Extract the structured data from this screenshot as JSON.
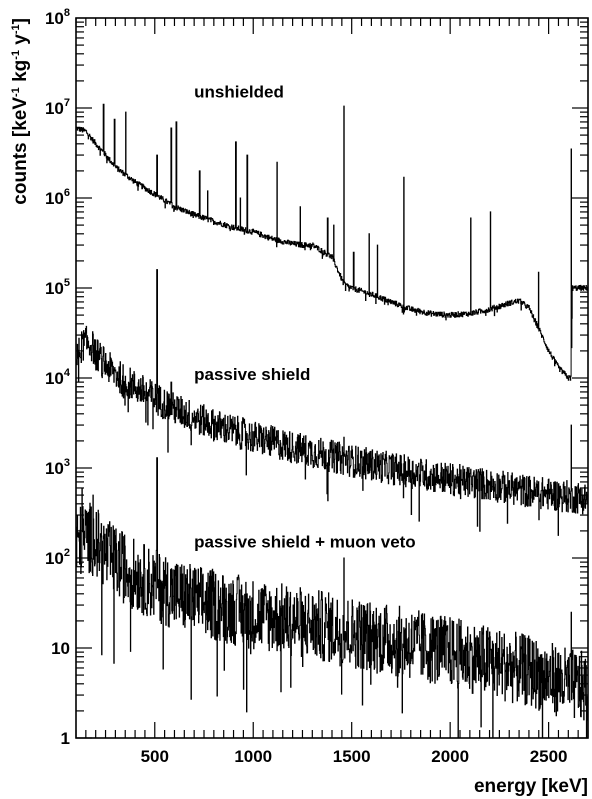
{
  "chart_data": {
    "type": "line",
    "xlabel": "energy [keV]",
    "ylabel": {
      "text": "counts [keV",
      "sup1": "-1",
      "mid": " kg",
      "sup2": "-1",
      "mid2": " y",
      "sup3": "-1",
      "end": "]"
    },
    "xlim": [
      100,
      2700
    ],
    "ylim": [
      1,
      100000000
    ],
    "yscale": "log",
    "x_ticks": [
      {
        "value": 500,
        "label": "500"
      },
      {
        "value": 1000,
        "label": "1000"
      },
      {
        "value": 1500,
        "label": "1500"
      },
      {
        "value": 2000,
        "label": "2000"
      },
      {
        "value": 2500,
        "label": "2500"
      }
    ],
    "y_ticks": [
      {
        "value": 1,
        "label": "1",
        "exp": ""
      },
      {
        "value": 10,
        "label": "10",
        "exp": ""
      },
      {
        "value": 100,
        "label": "10",
        "exp": "2"
      },
      {
        "value": 1000,
        "label": "10",
        "exp": "3"
      },
      {
        "value": 10000,
        "label": "10",
        "exp": "4"
      },
      {
        "value": 100000,
        "label": "10",
        "exp": "5"
      },
      {
        "value": 1000000,
        "label": "10",
        "exp": "6"
      },
      {
        "value": 10000000,
        "label": "10",
        "exp": "7"
      },
      {
        "value": 100000000,
        "label": "10",
        "exp": "8"
      }
    ],
    "annotations": [
      {
        "text": "unshielded",
        "x": 700,
        "y": 13000000
      },
      {
        "text": "passive shield",
        "x": 700,
        "y": 9500
      },
      {
        "text": "passive shield + muon veto",
        "x": 700,
        "y": 130
      }
    ],
    "series": [
      {
        "noise": 0.03,
        "x": [
          100,
          150,
          200,
          250,
          300,
          400,
          500,
          600,
          700,
          800,
          900,
          1000,
          1100,
          1200,
          1250,
          1300,
          1400,
          1460,
          1500,
          1600,
          1700,
          1800,
          1900,
          2000,
          2100,
          2200,
          2300,
          2350,
          2400,
          2450,
          2500,
          2550,
          2600,
          2614,
          2620,
          2700
        ],
        "y": [
          6000000,
          5500000,
          4000000,
          3000000,
          2200000,
          1500000,
          1100000,
          800000,
          650000,
          550000,
          470000,
          420000,
          350000,
          310000,
          300000,
          300000,
          220000,
          110000,
          100000,
          85000,
          70000,
          58000,
          52000,
          50000,
          52000,
          58000,
          68000,
          72000,
          60000,
          35000,
          20000,
          13000,
          10000,
          10000,
          100000,
          100000
        ],
        "peaks": [
          {
            "x": 239,
            "y": 11000000
          },
          {
            "x": 295,
            "y": 7500000
          },
          {
            "x": 352,
            "y": 9000000
          },
          {
            "x": 511,
            "y": 3000000
          },
          {
            "x": 583,
            "y": 6000000
          },
          {
            "x": 609,
            "y": 7000000
          },
          {
            "x": 727,
            "y": 2000000
          },
          {
            "x": 768,
            "y": 1200000
          },
          {
            "x": 911,
            "y": 4200000
          },
          {
            "x": 934,
            "y": 1000000
          },
          {
            "x": 969,
            "y": 3000000
          },
          {
            "x": 1120,
            "y": 2500000
          },
          {
            "x": 1238,
            "y": 800000
          },
          {
            "x": 1377,
            "y": 600000
          },
          {
            "x": 1408,
            "y": 500000
          },
          {
            "x": 1460,
            "y": 10500000
          },
          {
            "x": 1509,
            "y": 250000
          },
          {
            "x": 1588,
            "y": 400000
          },
          {
            "x": 1630,
            "y": 300000
          },
          {
            "x": 1764,
            "y": 1700000
          },
          {
            "x": 2104,
            "y": 600000
          },
          {
            "x": 2204,
            "y": 700000
          },
          {
            "x": 2448,
            "y": 150000
          },
          {
            "x": 2614,
            "y": 3500000
          }
        ]
      },
      {
        "noise": 0.18,
        "x": [
          100,
          130,
          150,
          180,
          200,
          250,
          300,
          400,
          500,
          600,
          800,
          1000,
          1200,
          1500,
          1800,
          2000,
          2200,
          2400,
          2600,
          2700
        ],
        "y": [
          16000,
          23000,
          25000,
          23000,
          19000,
          14000,
          11000,
          8000,
          6000,
          4500,
          3000,
          2200,
          1700,
          1200,
          900,
          750,
          650,
          550,
          480,
          460
        ],
        "peaks": [
          {
            "x": 511,
            "y": 160000
          },
          {
            "x": 583,
            "y": 9000
          },
          {
            "x": 1460,
            "y": 2200
          },
          {
            "x": 2614,
            "y": 3000
          }
        ]
      },
      {
        "noise": 0.4,
        "x": [
          100,
          150,
          200,
          250,
          300,
          400,
          500,
          600,
          700,
          800,
          1000,
          1200,
          1500,
          1800,
          2000,
          2200,
          2400,
          2600,
          2700
        ],
        "y": [
          140,
          180,
          150,
          110,
          90,
          65,
          50,
          40,
          34,
          30,
          24,
          20,
          15,
          11,
          9,
          7,
          5.5,
          4,
          3.5
        ],
        "peaks": [
          {
            "x": 130,
            "y": 600
          },
          {
            "x": 186,
            "y": 500
          },
          {
            "x": 511,
            "y": 1300
          },
          {
            "x": 1460,
            "y": 100
          },
          {
            "x": 2614,
            "y": 25
          }
        ]
      }
    ]
  }
}
